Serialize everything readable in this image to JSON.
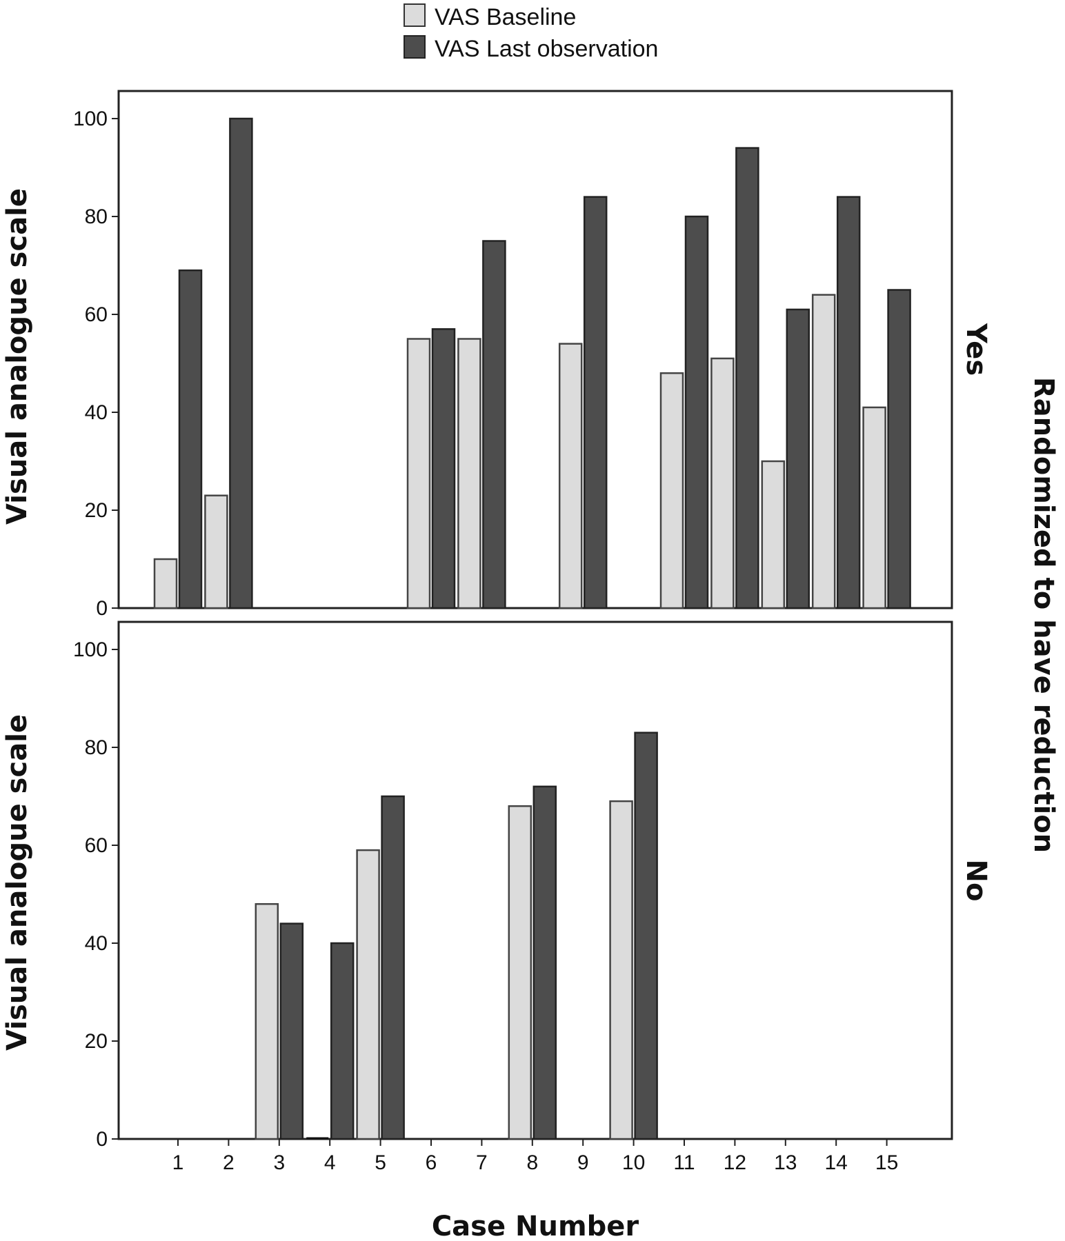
{
  "chart_data": {
    "type": "bar",
    "xlabel": "Case Number",
    "ylabel": "Visual analogue scale",
    "panel_axis_label": "Randomized to have reduction",
    "ylim": [
      0,
      105
    ],
    "y_ticks": [
      0,
      20,
      40,
      60,
      80,
      100
    ],
    "categories": [
      "1",
      "2",
      "3",
      "4",
      "5",
      "6",
      "7",
      "8",
      "9",
      "10",
      "11",
      "12",
      "13",
      "14",
      "15"
    ],
    "legend": {
      "position": "top-center",
      "entries": [
        {
          "label": "VAS Baseline",
          "color": "#dcdcdc"
        },
        {
          "label": "VAS Last observation",
          "color": "#4d4d4d"
        }
      ]
    },
    "grid": false,
    "panels": [
      {
        "label": "Yes",
        "series": [
          {
            "name": "VAS Baseline",
            "values": [
              10,
              23,
              null,
              null,
              null,
              55,
              55,
              null,
              54,
              null,
              48,
              51,
              30,
              64,
              41
            ]
          },
          {
            "name": "VAS Last observation",
            "values": [
              69,
              100,
              null,
              null,
              null,
              57,
              75,
              null,
              84,
              null,
              80,
              94,
              61,
              84,
              65
            ]
          }
        ]
      },
      {
        "label": "No",
        "series": [
          {
            "name": "VAS Baseline",
            "values": [
              null,
              null,
              48,
              0,
              59,
              null,
              null,
              68,
              null,
              69,
              null,
              null,
              null,
              null,
              null
            ]
          },
          {
            "name": "VAS Last observation",
            "values": [
              null,
              null,
              44,
              40,
              70,
              null,
              null,
              72,
              null,
              83,
              null,
              null,
              null,
              null,
              null
            ]
          }
        ]
      }
    ]
  }
}
